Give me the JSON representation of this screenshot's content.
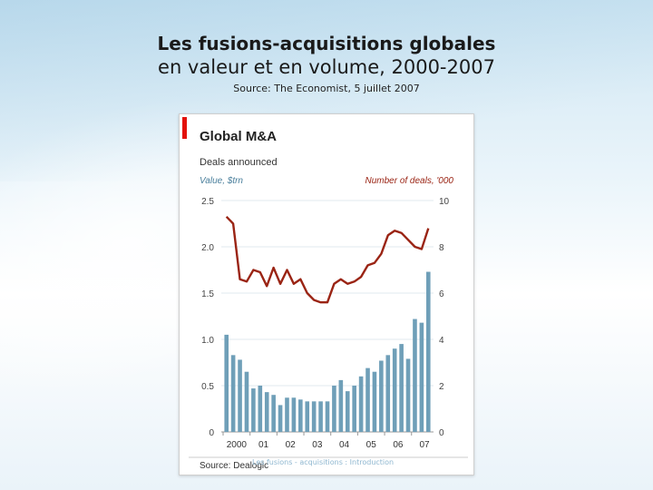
{
  "slide": {
    "title_line1": "Les fusions-acquisitions globales",
    "title_line2": "en valeur et en volume, 2000-2007",
    "source_line": "Source: The Economist, 5 juillet 2007",
    "faint_footer": "Les fusions - acquisitions : Introduction"
  },
  "chart_data": {
    "type": "bar+line",
    "title": "Global M&A",
    "subtitle": "Deals announced",
    "left_axis_label": "Value, $trn",
    "right_axis_label": "Number of deals, '000",
    "source": "Source: Dealogic",
    "left_ylim": [
      0,
      2.5
    ],
    "right_ylim": [
      0,
      10
    ],
    "left_ticks": [
      "2.5",
      "2.0",
      "1.5",
      "1.0",
      "0.5",
      "0"
    ],
    "right_ticks": [
      "10",
      "8",
      "6",
      "4",
      "2",
      "0"
    ],
    "x_tick_labels": [
      "2000",
      "01",
      "02",
      "03",
      "04",
      "05",
      "06",
      "07"
    ],
    "bar_series": {
      "name": "Value, $trn",
      "color": "#6f9fb8",
      "values": [
        1.05,
        0.83,
        0.78,
        0.65,
        0.47,
        0.5,
        0.43,
        0.4,
        0.29,
        0.37,
        0.37,
        0.35,
        0.33,
        0.33,
        0.33,
        0.33,
        0.5,
        0.56,
        0.44,
        0.5,
        0.6,
        0.69,
        0.65,
        0.77,
        0.83,
        0.9,
        0.95,
        0.79,
        1.22,
        1.18,
        1.73
      ]
    },
    "line_series": {
      "name": "Number of deals, '000",
      "color": "#9a2414",
      "values": [
        9.3,
        9.0,
        6.6,
        6.5,
        7.0,
        6.9,
        6.3,
        7.1,
        6.4,
        7.0,
        6.4,
        6.6,
        6.0,
        5.7,
        5.6,
        5.6,
        6.4,
        6.6,
        6.4,
        6.5,
        6.7,
        7.2,
        7.3,
        7.7,
        8.5,
        8.7,
        8.6,
        8.3,
        8.0,
        7.9,
        8.8
      ]
    },
    "brand_color": "#e3120b",
    "grid": true
  }
}
